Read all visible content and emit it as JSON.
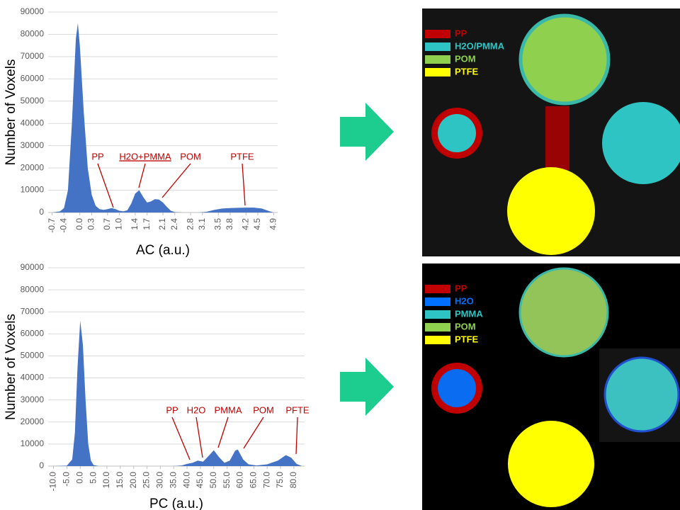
{
  "chart_data": [
    {
      "type": "area",
      "color": "#4472c4",
      "y_label": "Number of Voxels",
      "x_label": "AC (a.u.)",
      "x": [
        -0.7,
        -0.5,
        -0.4,
        -0.3,
        -0.2,
        -0.1,
        -0.05,
        0,
        0.1,
        0.2,
        0.3,
        0.4,
        0.5,
        0.6,
        0.7,
        0.8,
        0.9,
        1.0,
        1.1,
        1.2,
        1.3,
        1.4,
        1.5,
        1.6,
        1.7,
        1.8,
        1.9,
        2.0,
        2.1,
        2.2,
        2.3,
        2.4,
        2.6,
        3.0,
        3.2,
        3.4,
        3.6,
        3.8,
        4.0,
        4.2,
        4.4,
        4.6,
        4.8,
        4.9
      ],
      "values": [
        0,
        500,
        2000,
        10000,
        40000,
        78000,
        85000,
        75000,
        45000,
        20000,
        8000,
        3000,
        1500,
        1200,
        1500,
        2000,
        1500,
        800,
        500,
        1000,
        4000,
        8500,
        10000,
        7000,
        4500,
        5000,
        6000,
        5800,
        4500,
        2500,
        800,
        200,
        0,
        0,
        300,
        1200,
        1800,
        2000,
        2100,
        2200,
        2200,
        1800,
        500,
        0
      ],
      "xlim": [
        -0.8,
        5.0
      ],
      "ylim": [
        0,
        90000
      ],
      "xticks": [
        -0.7,
        -0.4,
        {
          "value": 0,
          "label": "0.0"
        },
        0.3,
        0.7,
        {
          "value": 1,
          "label": "1.0"
        },
        1.4,
        1.7,
        2.1,
        2.4,
        2.8,
        3.1,
        3.5,
        3.8,
        4.2,
        4.5,
        4.9
      ],
      "yticks": [
        0,
        10000,
        20000,
        30000,
        40000,
        50000,
        60000,
        70000,
        80000,
        90000
      ],
      "grid": true,
      "annotations": [
        "PP",
        "H2O+PMMA",
        "POM",
        "PTFE"
      ]
    },
    {
      "type": "area",
      "color": "#4472c4",
      "y_label": "Number of Voxels",
      "x_label": "PC (a.u.)",
      "x": [
        -10,
        -5,
        -3,
        -2,
        -1,
        0,
        1,
        2,
        3,
        4,
        5,
        7,
        35,
        38,
        40,
        42,
        44,
        46,
        48,
        50,
        52,
        54,
        56,
        58,
        59,
        61,
        63,
        66,
        70,
        74,
        77,
        79,
        81,
        83
      ],
      "values": [
        0,
        200,
        3000,
        15000,
        45000,
        66000,
        55000,
        30000,
        10000,
        2500,
        500,
        0,
        0,
        300,
        1000,
        1500,
        2500,
        2000,
        4500,
        7200,
        4000,
        1500,
        2500,
        7000,
        7500,
        3000,
        800,
        300,
        800,
        2500,
        5000,
        3800,
        1000,
        0
      ],
      "xlim": [
        -12,
        84
      ],
      "ylim": [
        0,
        90000
      ],
      "xticks": [
        {
          "value": -10,
          "label": "-10.0"
        },
        {
          "value": -5,
          "label": "-5.0"
        },
        {
          "value": 0,
          "label": "0.0"
        },
        {
          "value": 5,
          "label": "5.0"
        },
        {
          "value": 10,
          "label": "10.0"
        },
        {
          "value": 15,
          "label": "15.0"
        },
        {
          "value": 20,
          "label": "20.0"
        },
        {
          "value": 25,
          "label": "25.0"
        },
        {
          "value": 30,
          "label": "30.0"
        },
        {
          "value": 35,
          "label": "35.0"
        },
        {
          "value": 40,
          "label": "40.0"
        },
        {
          "value": 45,
          "label": "45.0"
        },
        {
          "value": 50,
          "label": "50.0"
        },
        {
          "value": 55,
          "label": "55.0"
        },
        {
          "value": 60,
          "label": "60.0"
        },
        {
          "value": 65,
          "label": "65.0"
        },
        {
          "value": 70,
          "label": "70.0"
        },
        {
          "value": 75,
          "label": "75.0"
        },
        {
          "value": 80,
          "label": "80.0"
        }
      ],
      "yticks": [
        0,
        10000,
        20000,
        30000,
        40000,
        50000,
        60000,
        70000,
        80000,
        90000
      ],
      "grid": true,
      "annotations": [
        "PP",
        "H2O",
        "PMMA",
        "POM",
        "PFTE"
      ]
    }
  ],
  "images": [
    {
      "legend": [
        {
          "label": "PP",
          "color": "#c00000"
        },
        {
          "label": "H2O/PMMA",
          "color": "#2ec4c4"
        },
        {
          "label": "POM",
          "color": "#8fd14f"
        },
        {
          "label": "PTFE",
          "color": "#ffff00"
        }
      ]
    },
    {
      "legend": [
        {
          "label": "PP",
          "color": "#c00000"
        },
        {
          "label": "H2O",
          "color": "#0070ff"
        },
        {
          "label": "PMMA",
          "color": "#2ec4c4"
        },
        {
          "label": "POM",
          "color": "#8fd14f"
        },
        {
          "label": "PTFE",
          "color": "#ffff00"
        }
      ]
    }
  ]
}
